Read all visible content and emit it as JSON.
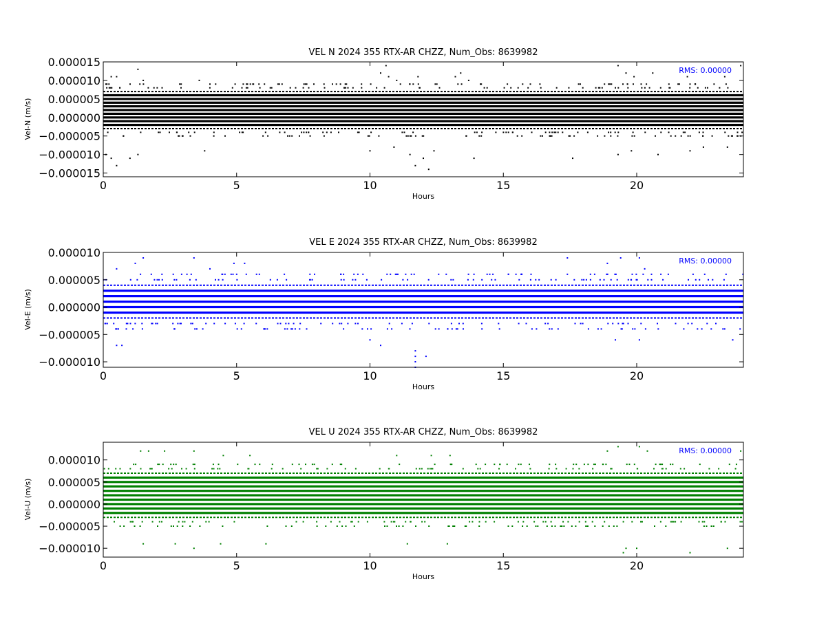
{
  "chart_data": [
    {
      "type": "scatter",
      "title": "VEL N 2024 355 RTX-AR  CHZZ, Num_Obs: 8639982",
      "xlabel": "Hours",
      "ylabel": "Vel-N (m/s)",
      "xlim": [
        0,
        24
      ],
      "ylim": [
        -1.6e-05,
        1.5e-05
      ],
      "xticks": [
        0,
        5,
        10,
        15,
        20
      ],
      "xtick_labels": [
        "0",
        "5",
        "10",
        "15",
        "20"
      ],
      "yticks": [
        1.5e-05,
        1e-05,
        5e-06,
        0,
        -5e-06,
        -1e-05,
        -1.5e-05
      ],
      "ytick_labels": [
        "0.000015",
        "0.000010",
        "0.000005",
        "0.000000",
        "−0.000005",
        "−0.000010",
        "−0.000015"
      ],
      "annotation": "RMS:  0.00000",
      "color": "#000000",
      "grid": false,
      "series": [
        {
          "dense_band": [
            -3e-06,
            7e-06
          ],
          "resolution": 1e-06,
          "points": [
            [
              0.3,
              1.1e-05
            ],
            [
              0.5,
              1.1e-05
            ],
            [
              1.3,
              1.3e-05
            ],
            [
              1.5,
              1e-05
            ],
            [
              3.6,
              1e-05
            ],
            [
              4.0,
              9e-06
            ],
            [
              6.6,
              9e-06
            ],
            [
              10.4,
              1.2e-05
            ],
            [
              10.6,
              1.4e-05
            ],
            [
              10.7,
              1.1e-05
            ],
            [
              11.0,
              1e-05
            ],
            [
              11.8,
              1.1e-05
            ],
            [
              13.2,
              1.1e-05
            ],
            [
              13.4,
              1.2e-05
            ],
            [
              13.7,
              1e-05
            ],
            [
              19.3,
              1.4e-05
            ],
            [
              19.6,
              1.2e-05
            ],
            [
              19.9,
              1.1e-05
            ],
            [
              20.6,
              1.2e-05
            ],
            [
              21.9,
              1.1e-05
            ],
            [
              23.3,
              1.1e-05
            ],
            [
              23.9,
              1.4e-05
            ],
            [
              0.1,
              -1e-05
            ],
            [
              0.3,
              -1.1e-05
            ],
            [
              0.5,
              -1.3e-05
            ],
            [
              1.0,
              -1.1e-05
            ],
            [
              1.3,
              -1e-05
            ],
            [
              3.8,
              -9e-06
            ],
            [
              10.0,
              -9e-06
            ],
            [
              10.9,
              -8e-06
            ],
            [
              11.5,
              -1e-05
            ],
            [
              11.7,
              -1.3e-05
            ],
            [
              12.0,
              -1.1e-05
            ],
            [
              12.2,
              -1.4e-05
            ],
            [
              12.4,
              -9e-06
            ],
            [
              13.9,
              -1.1e-05
            ],
            [
              17.6,
              -1.1e-05
            ],
            [
              19.3,
              -1e-05
            ],
            [
              19.8,
              -9e-06
            ],
            [
              20.8,
              -1e-05
            ],
            [
              22.0,
              -9e-06
            ],
            [
              22.5,
              -8e-06
            ],
            [
              23.4,
              -8e-06
            ]
          ]
        }
      ]
    },
    {
      "type": "scatter",
      "title": "VEL E 2024 355 RTX-AR  CHZZ, Num_Obs: 8639982",
      "xlabel": "Hours",
      "ylabel": "Vel-E (m/s)",
      "xlim": [
        0,
        24
      ],
      "ylim": [
        -1.1e-05,
        1e-05
      ],
      "xticks": [
        0,
        5,
        10,
        15,
        20
      ],
      "xtick_labels": [
        "0",
        "5",
        "10",
        "15",
        "20"
      ],
      "yticks": [
        1e-05,
        5e-06,
        0,
        -5e-06,
        -1e-05
      ],
      "ytick_labels": [
        "0.000010",
        "0.000005",
        "0.000000",
        "−0.000005",
        "−0.000010"
      ],
      "annotation": "RMS:  0.00000",
      "color": "#0000ff",
      "grid": false,
      "series": [
        {
          "dense_band": [
            -2e-06,
            4e-06
          ],
          "resolution": 1e-06,
          "points": [
            [
              0.5,
              7e-06
            ],
            [
              1.2,
              8e-06
            ],
            [
              1.5,
              9e-06
            ],
            [
              3.4,
              9e-06
            ],
            [
              4.0,
              7e-06
            ],
            [
              4.9,
              8e-06
            ],
            [
              5.3,
              8e-06
            ],
            [
              17.4,
              9e-06
            ],
            [
              18.9,
              8e-06
            ],
            [
              19.4,
              9e-06
            ],
            [
              20.1,
              9e-06
            ],
            [
              20.3,
              7e-06
            ],
            [
              0.5,
              -7e-06
            ],
            [
              0.7,
              -7e-06
            ],
            [
              10.0,
              -6e-06
            ],
            [
              10.4,
              -7e-06
            ],
            [
              11.7,
              -8e-06
            ],
            [
              11.7,
              -9e-06
            ],
            [
              11.7,
              -1e-05
            ],
            [
              11.7,
              -1.1e-05
            ],
            [
              12.1,
              -9e-06
            ],
            [
              19.2,
              -6e-06
            ],
            [
              20.1,
              -6e-06
            ],
            [
              23.6,
              -6e-06
            ]
          ]
        }
      ]
    },
    {
      "type": "scatter",
      "title": "VEL U 2024 355 RTX-AR  CHZZ, Num_Obs: 8639982",
      "xlabel": "Hours",
      "ylabel": "Vel-U (m/s)",
      "xlim": [
        0,
        24
      ],
      "ylim": [
        -1.2e-05,
        1.4e-05
      ],
      "xticks": [
        0,
        5,
        10,
        15,
        20
      ],
      "xtick_labels": [
        "0",
        "5",
        "10",
        "15",
        "20"
      ],
      "yticks": [
        1e-05,
        5e-06,
        0,
        -5e-06,
        -1e-05
      ],
      "ytick_labels": [
        "0.000010",
        "0.000005",
        "0.000000",
        "−0.000005",
        "−0.000010"
      ],
      "annotation": "RMS:  0.00000",
      "color": "#008000",
      "grid": false,
      "series": [
        {
          "dense_band": [
            -3e-06,
            7e-06
          ],
          "resolution": 1e-06,
          "points": [
            [
              1.4,
              1.2e-05
            ],
            [
              1.7,
              1.2e-05
            ],
            [
              2.3,
              1.2e-05
            ],
            [
              3.4,
              1.2e-05
            ],
            [
              4.5,
              1.1e-05
            ],
            [
              5.5,
              1.1e-05
            ],
            [
              11.0,
              1.1e-05
            ],
            [
              12.3,
              1.1e-05
            ],
            [
              13.0,
              1.1e-05
            ],
            [
              18.9,
              1.2e-05
            ],
            [
              19.3,
              1.3e-05
            ],
            [
              20.1,
              1.3e-05
            ],
            [
              20.4,
              1.2e-05
            ],
            [
              23.9,
              1.2e-05
            ],
            [
              1.5,
              -9e-06
            ],
            [
              2.7,
              -9e-06
            ],
            [
              3.4,
              -1e-05
            ],
            [
              4.4,
              -9e-06
            ],
            [
              6.1,
              -9e-06
            ],
            [
              11.4,
              -9e-06
            ],
            [
              12.9,
              -9e-06
            ],
            [
              19.5,
              -1.1e-05
            ],
            [
              19.6,
              -1e-05
            ],
            [
              20.0,
              -1e-05
            ],
            [
              22.0,
              -1.1e-05
            ],
            [
              23.4,
              -1e-05
            ]
          ]
        }
      ]
    }
  ]
}
